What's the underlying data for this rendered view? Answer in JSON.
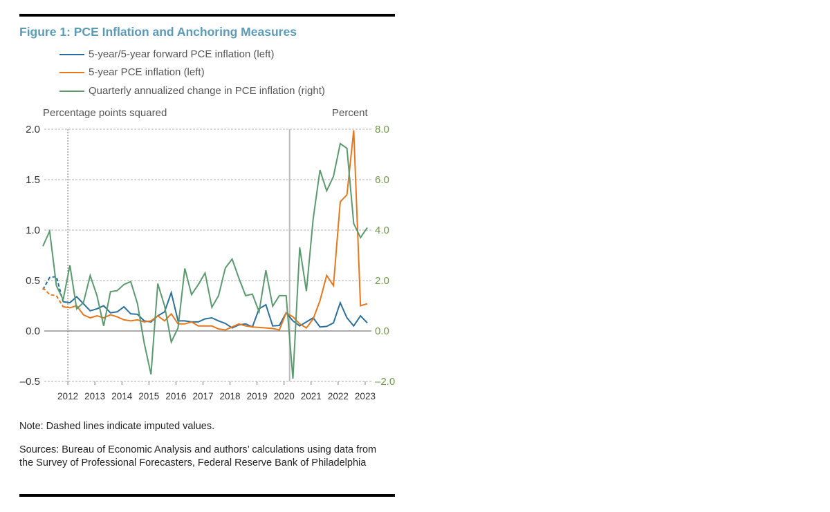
{
  "title": "Figure 1: PCE Inflation and Anchoring Measures",
  "left_axis_title": "Percentage points squared",
  "right_axis_title": "Percent",
  "note": "Note: Dashed lines indicate imputed values.",
  "sources": "Sources: Bureau of Economic Analysis and authors’ calculations using data from the Survey of Professional Forecasters, Federal Reserve Bank of Philadelphia",
  "chart_data": {
    "type": "line",
    "title": "Figure 1: PCE Inflation and Anchoring Measures",
    "ylabel_left": "Percentage points squared",
    "ylabel_right": "Percent",
    "ylim_left": [
      -0.5,
      2.0
    ],
    "ylim_right": [
      -2.0,
      8.0
    ],
    "y_ticks_left": [
      "2.0",
      "1.5",
      "1.0",
      "0.5",
      "0.0",
      "–0.5"
    ],
    "y_tick_values_left": [
      2.0,
      1.5,
      1.0,
      0.5,
      0.0,
      -0.5
    ],
    "y_ticks_right": [
      "8.0",
      "6.0",
      "4.0",
      "2.0",
      "0.0",
      "–2.0"
    ],
    "y_tick_values_right": [
      8.0,
      6.0,
      4.0,
      2.0,
      0.0,
      -2.0
    ],
    "x_ticks": [
      "2012",
      "2013",
      "2014",
      "2015",
      "2016",
      "2017",
      "2018",
      "2019",
      "2020",
      "2021",
      "2022",
      "2023"
    ],
    "grid": "horizontal dashed",
    "legend_placement": "top",
    "reference_lines": [
      {
        "x": "2012Q1",
        "style": "dotted",
        "color": "#666666"
      },
      {
        "x": "2020Q1",
        "style": "solid",
        "color": "#bbbbbb"
      }
    ],
    "imputed_through": "2011Q4",
    "x": [
      "2011Q1",
      "2011Q2",
      "2011Q3",
      "2011Q4",
      "2012Q1",
      "2012Q2",
      "2012Q3",
      "2012Q4",
      "2013Q1",
      "2013Q2",
      "2013Q3",
      "2013Q4",
      "2014Q1",
      "2014Q2",
      "2014Q3",
      "2014Q4",
      "2015Q1",
      "2015Q2",
      "2015Q3",
      "2015Q4",
      "2016Q1",
      "2016Q2",
      "2016Q3",
      "2016Q4",
      "2017Q1",
      "2017Q2",
      "2017Q3",
      "2017Q4",
      "2018Q1",
      "2018Q2",
      "2018Q3",
      "2018Q4",
      "2019Q1",
      "2019Q2",
      "2019Q3",
      "2019Q4",
      "2020Q1",
      "2020Q2",
      "2020Q3",
      "2020Q4",
      "2021Q1",
      "2021Q2",
      "2021Q3",
      "2021Q4",
      "2022Q1",
      "2022Q2",
      "2022Q3",
      "2022Q4",
      "2023Q1"
    ],
    "series": [
      {
        "name": "5-year/5-year forward PCE inflation (left)",
        "axis": "left",
        "color": "#2a6f9b",
        "values": [
          0.41,
          0.53,
          0.54,
          0.29,
          0.28,
          0.34,
          0.27,
          0.2,
          0.22,
          0.25,
          0.18,
          0.19,
          0.24,
          0.17,
          0.165,
          0.1,
          0.09,
          0.15,
          0.19,
          0.38,
          0.1,
          0.1,
          0.09,
          0.09,
          0.12,
          0.13,
          0.1,
          0.075,
          0.03,
          0.06,
          0.07,
          0.04,
          0.22,
          0.26,
          0.05,
          0.055,
          0.18,
          0.1,
          0.05,
          0.09,
          0.13,
          0.04,
          0.045,
          0.08,
          0.28,
          0.13,
          0.05,
          0.15,
          0.08
        ]
      },
      {
        "name": "5-year PCE inflation (left)",
        "axis": "left",
        "color": "#e8761c",
        "values": [
          0.43,
          0.36,
          0.35,
          0.24,
          0.23,
          0.25,
          0.16,
          0.13,
          0.15,
          0.13,
          0.16,
          0.14,
          0.11,
          0.1,
          0.11,
          0.09,
          0.1,
          0.15,
          0.1,
          0.17,
          0.07,
          0.07,
          0.09,
          0.05,
          0.05,
          0.05,
          0.02,
          0.01,
          0.04,
          0.07,
          0.05,
          0.04,
          0.035,
          0.03,
          0.025,
          0.01,
          0.18,
          0.14,
          0.07,
          0.03,
          0.12,
          0.3,
          0.55,
          0.45,
          1.28,
          1.35,
          1.99,
          0.25,
          0.27
        ]
      },
      {
        "name": "Quarterly annualized change in PCE inflation (right)",
        "axis": "right",
        "color": "#5a9a6e",
        "values": [
          3.36,
          3.96,
          1.8,
          1.24,
          2.6,
          0.88,
          1.12,
          2.2,
          1.4,
          0.2,
          1.56,
          1.6,
          1.84,
          1.96,
          1.08,
          -0.48,
          -1.72,
          1.88,
          1.0,
          -0.44,
          0.12,
          2.48,
          1.44,
          1.84,
          2.3,
          0.94,
          1.4,
          2.5,
          2.85,
          2.1,
          1.4,
          1.46,
          0.76,
          2.41,
          0.98,
          1.4,
          1.4,
          -1.89,
          3.31,
          1.58,
          4.45,
          6.38,
          5.56,
          6.13,
          7.43,
          7.24,
          4.26,
          3.7,
          4.1
        ]
      }
    ]
  },
  "colors": {
    "title": "#5b9bb8",
    "right_axis": "#6e9a45"
  }
}
